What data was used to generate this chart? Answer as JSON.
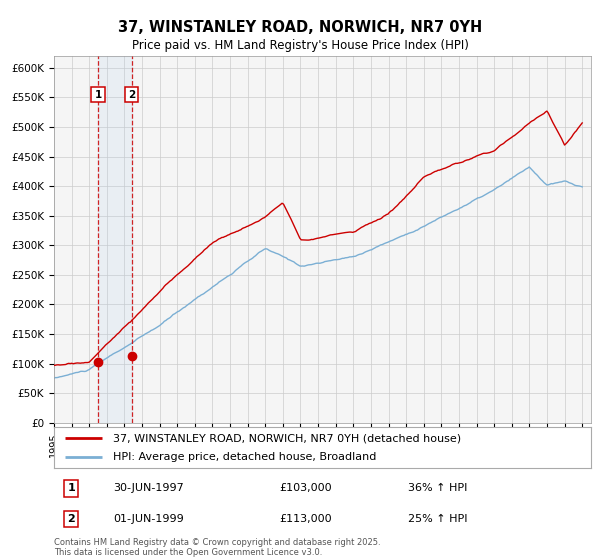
{
  "title": "37, WINSTANLEY ROAD, NORWICH, NR7 0YH",
  "subtitle": "Price paid vs. HM Land Registry's House Price Index (HPI)",
  "ylim": [
    0,
    620000
  ],
  "yticks": [
    0,
    50000,
    100000,
    150000,
    200000,
    250000,
    300000,
    350000,
    400000,
    450000,
    500000,
    550000,
    600000
  ],
  "ytick_labels": [
    "£0",
    "£50K",
    "£100K",
    "£150K",
    "£200K",
    "£250K",
    "£300K",
    "£350K",
    "£400K",
    "£450K",
    "£500K",
    "£550K",
    "£600K"
  ],
  "hpi_color": "#7bafd4",
  "price_color": "#cc0000",
  "background_color": "#ffffff",
  "grid_color": "#cccccc",
  "annotation1_date": "30-JUN-1997",
  "annotation1_price": "£103,000",
  "annotation1_hpi": "36% ↑ HPI",
  "annotation2_date": "01-JUN-1999",
  "annotation2_price": "£113,000",
  "annotation2_hpi": "25% ↑ HPI",
  "legend_line1": "37, WINSTANLEY ROAD, NORWICH, NR7 0YH (detached house)",
  "legend_line2": "HPI: Average price, detached house, Broadland",
  "footer": "Contains HM Land Registry data © Crown copyright and database right 2025.\nThis data is licensed under the Open Government Licence v3.0.",
  "sale1_x": 1997.5,
  "sale1_y": 103000,
  "sale2_x": 1999.42,
  "sale2_y": 113000,
  "xlim_left": 1995.0,
  "xlim_right": 2025.5
}
